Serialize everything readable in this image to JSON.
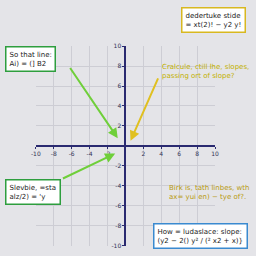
{
  "chart_data": {
    "type": "scatter",
    "x": [],
    "values": [],
    "xlim": [
      -10,
      10
    ],
    "ylim": [
      -10,
      10
    ],
    "xticks": [
      -10,
      -8,
      -6,
      -4,
      -2,
      2,
      4,
      6,
      8,
      10
    ],
    "yticks": [
      -10,
      -8,
      -6,
      -4,
      -2,
      2,
      4,
      6,
      8,
      10
    ],
    "grid": true,
    "annotations": [
      {
        "lines": [
          "So that line:",
          "Ai) = (] B2"
        ],
        "color": "#2e9e3e"
      },
      {
        "lines": [
          "dedertuke stide",
          "= xt(2)! − y2 y!"
        ],
        "color": "#d8b820"
      },
      {
        "lines": [
          "Cralcule, ctill lhe, slopes,",
          "passing ort of slope?"
        ],
        "color": "#c2b000"
      },
      {
        "lines": [
          "Slevbie, =sta",
          "alz/2) = 'y"
        ],
        "color": "#2e9e3e"
      },
      {
        "lines": [
          "Birk is, tath linbes, wth",
          "ax= yui en) − tye of?."
        ],
        "color": "#b89a10"
      },
      {
        "lines": [
          "How = ludaslace: slope:",
          "(y2 − 2() y² / (² x2 + x)}"
        ],
        "color": "#3a8ad0"
      }
    ]
  }
}
